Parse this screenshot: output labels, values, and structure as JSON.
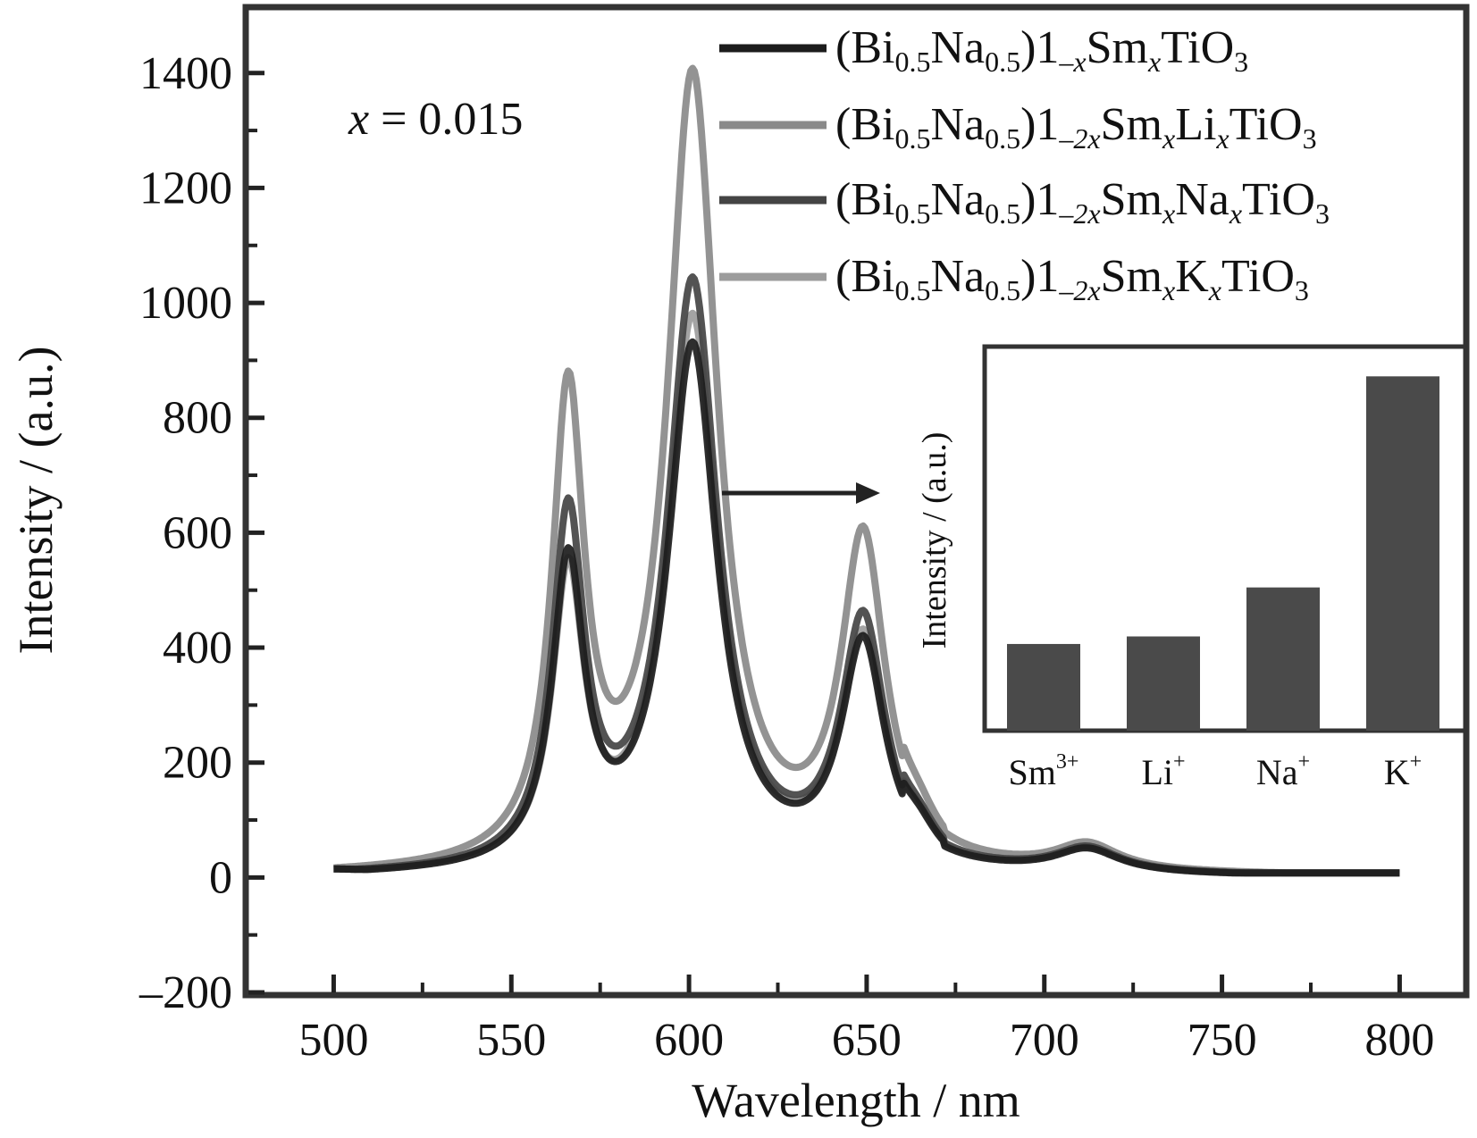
{
  "chart_data": [
    {
      "type": "line",
      "annotation": "x = 0.015",
      "xlabel": "Wavelength / nm",
      "ylabel": "Intensity / (a.u.)",
      "xlim": [
        476,
        818
      ],
      "ylim": [
        -200,
        1510
      ],
      "x_ticks": [
        "500",
        "550",
        "600",
        "650",
        "700",
        "750",
        "800"
      ],
      "y_ticks": [
        "–200",
        "0",
        "200",
        "400",
        "600",
        "800",
        "1000",
        "1200",
        "1400"
      ],
      "grid": false,
      "legend_position": "top-right",
      "series": [
        {
          "name": "(Bi0.5Na0.5)1–xSmxTiO3",
          "color": "#1c1c1c",
          "peaks": [
            [
              566,
              520
            ],
            [
              601,
              910
            ],
            [
              649,
              390
            ],
            [
              712,
              40
            ]
          ]
        },
        {
          "name": "(Bi0.5Na0.5)1–2xSmxLixTiO3",
          "color": "#8a8a8a",
          "peaks": [
            [
              566,
              800
            ],
            [
              601,
              1375
            ],
            [
              649,
              565
            ],
            [
              712,
              45
            ]
          ]
        },
        {
          "name": "(Bi0.5Na0.5)1–2xSmxNaxTiO3",
          "color": "#444444",
          "peaks": [
            [
              566,
              600
            ],
            [
              601,
              1020
            ],
            [
              649,
              430
            ],
            [
              712,
              42
            ]
          ]
        },
        {
          "name": "(Bi0.5Na0.5)1–2xSmxKxTiO3",
          "color": "#9c9c9c",
          "peaks": [
            [
              566,
              500
            ],
            [
              601,
              960
            ],
            [
              649,
              400
            ],
            [
              712,
              40
            ]
          ]
        }
      ]
    },
    {
      "type": "bar",
      "ylabel": "Intensity / (a.u.)",
      "categories": [
        "Sm3+",
        "Li+",
        "Na+",
        "K+"
      ],
      "values": [
        0.23,
        0.25,
        0.38,
        0.94
      ],
      "ylim": [
        0,
        1
      ],
      "bar_color": "#4a4a4a"
    }
  ],
  "legend_labels": [
    {
      "a": "(Bi",
      "b": "0.5",
      "c": "Na",
      "d": "0.5",
      "e": ")1",
      "f": "–x",
      "g": "Sm",
      "h": "x",
      "i": "TiO",
      "j": "3"
    },
    {
      "a": "(Bi",
      "b": "0.5",
      "c": "Na",
      "d": "0.5",
      "e": ")1",
      "f": "–2x",
      "g": "Sm",
      "h": "x",
      "i": "Li",
      "j": "x",
      "k": "TiO",
      "l": "3"
    },
    {
      "a": "(Bi",
      "b": "0.5",
      "c": "Na",
      "d": "0.5",
      "e": ")1",
      "f": "–2x",
      "g": "Sm",
      "h": "x",
      "i": "Na",
      "j": "x",
      "k": "TiO",
      "l": "3"
    },
    {
      "a": "(Bi",
      "b": "0.5",
      "c": "Na",
      "d": "0.5",
      "e": ")1",
      "f": "–2x",
      "g": "Sm",
      "h": "x",
      "i": "K",
      "j": "x",
      "k": "TiO",
      "l": "3"
    }
  ],
  "inset_labels": [
    {
      "base": "Sm",
      "sup": "3+"
    },
    {
      "base": "Li",
      "sup": "+"
    },
    {
      "base": "Na",
      "sup": "+"
    },
    {
      "base": "K",
      "sup": "+"
    }
  ],
  "annotation_parts": {
    "var": "x",
    "rest": " = 0.015"
  }
}
